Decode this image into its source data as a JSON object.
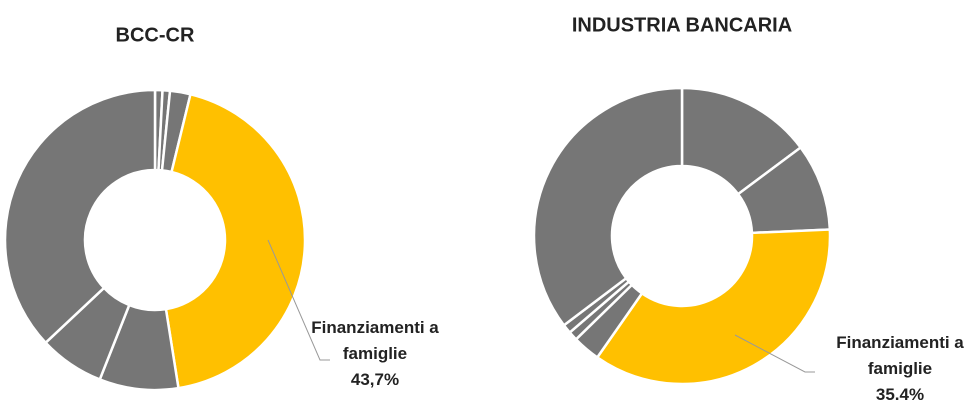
{
  "chart_data": [
    {
      "type": "donut",
      "title": "BCC-CR",
      "categories": [
        null,
        null,
        null,
        "Finanziamenti a famiglie",
        null,
        null,
        null
      ],
      "values": [
        0.8,
        0.8,
        2.2,
        43.7,
        8.5,
        7,
        37
      ],
      "value_labels": [
        null,
        null,
        null,
        "43,7%",
        null,
        null,
        null
      ],
      "colors": [
        "#767676",
        "#767676",
        "#767676",
        "#FFC000",
        "#767676",
        "#767676",
        "#767676"
      ]
    },
    {
      "type": "donut",
      "title": "INDUSTRIA BANCARIA",
      "categories": [
        null,
        null,
        "Finanziamenti a famiglie",
        null,
        null,
        null,
        null
      ],
      "values": [
        14.8,
        9.5,
        35.4,
        3,
        1,
        1,
        35.3
      ],
      "value_labels": [
        null,
        null,
        "35.4%",
        null,
        null,
        null,
        null
      ],
      "colors": [
        "#767676",
        "#767676",
        "#FFC000",
        "#767676",
        "#767676",
        "#767676",
        "#767676"
      ]
    }
  ]
}
